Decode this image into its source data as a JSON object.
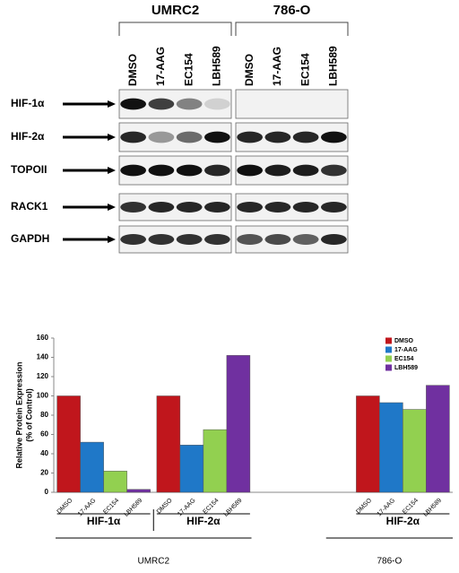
{
  "blot": {
    "cell_lines": [
      "UMRC2",
      "786-O"
    ],
    "lanes": [
      "DMSO",
      "17-AAG",
      "EC154",
      "LBH589"
    ],
    "proteins": [
      "HIF-1α",
      "HIF-2α",
      "TOPOII",
      "RACK1",
      "GAPDH"
    ]
  },
  "chart_data": {
    "type": "bar",
    "ylabel": [
      "Relative Protein Expression",
      "(% of Control)"
    ],
    "categories": [
      "HIF-1α",
      "HIF-2α",
      null,
      "HIF-2α"
    ],
    "groups": [
      "UMRC2",
      "786-O"
    ],
    "series": [
      {
        "name": "DMSO",
        "color": "#c0161c",
        "values": [
          100,
          100,
          null,
          100
        ]
      },
      {
        "name": "17-AAG",
        "color": "#1f78c8",
        "values": [
          52,
          49,
          null,
          93
        ]
      },
      {
        "name": "EC154",
        "color": "#92d050",
        "values": [
          22,
          65,
          null,
          86
        ]
      },
      {
        "name": "LBH589",
        "color": "#7030a0",
        "values": [
          3,
          142,
          null,
          111
        ]
      }
    ],
    "ylim": [
      0,
      160
    ],
    "yticks": [
      0,
      20,
      40,
      60,
      80,
      100,
      120,
      140,
      160
    ],
    "legend": "upper right"
  }
}
